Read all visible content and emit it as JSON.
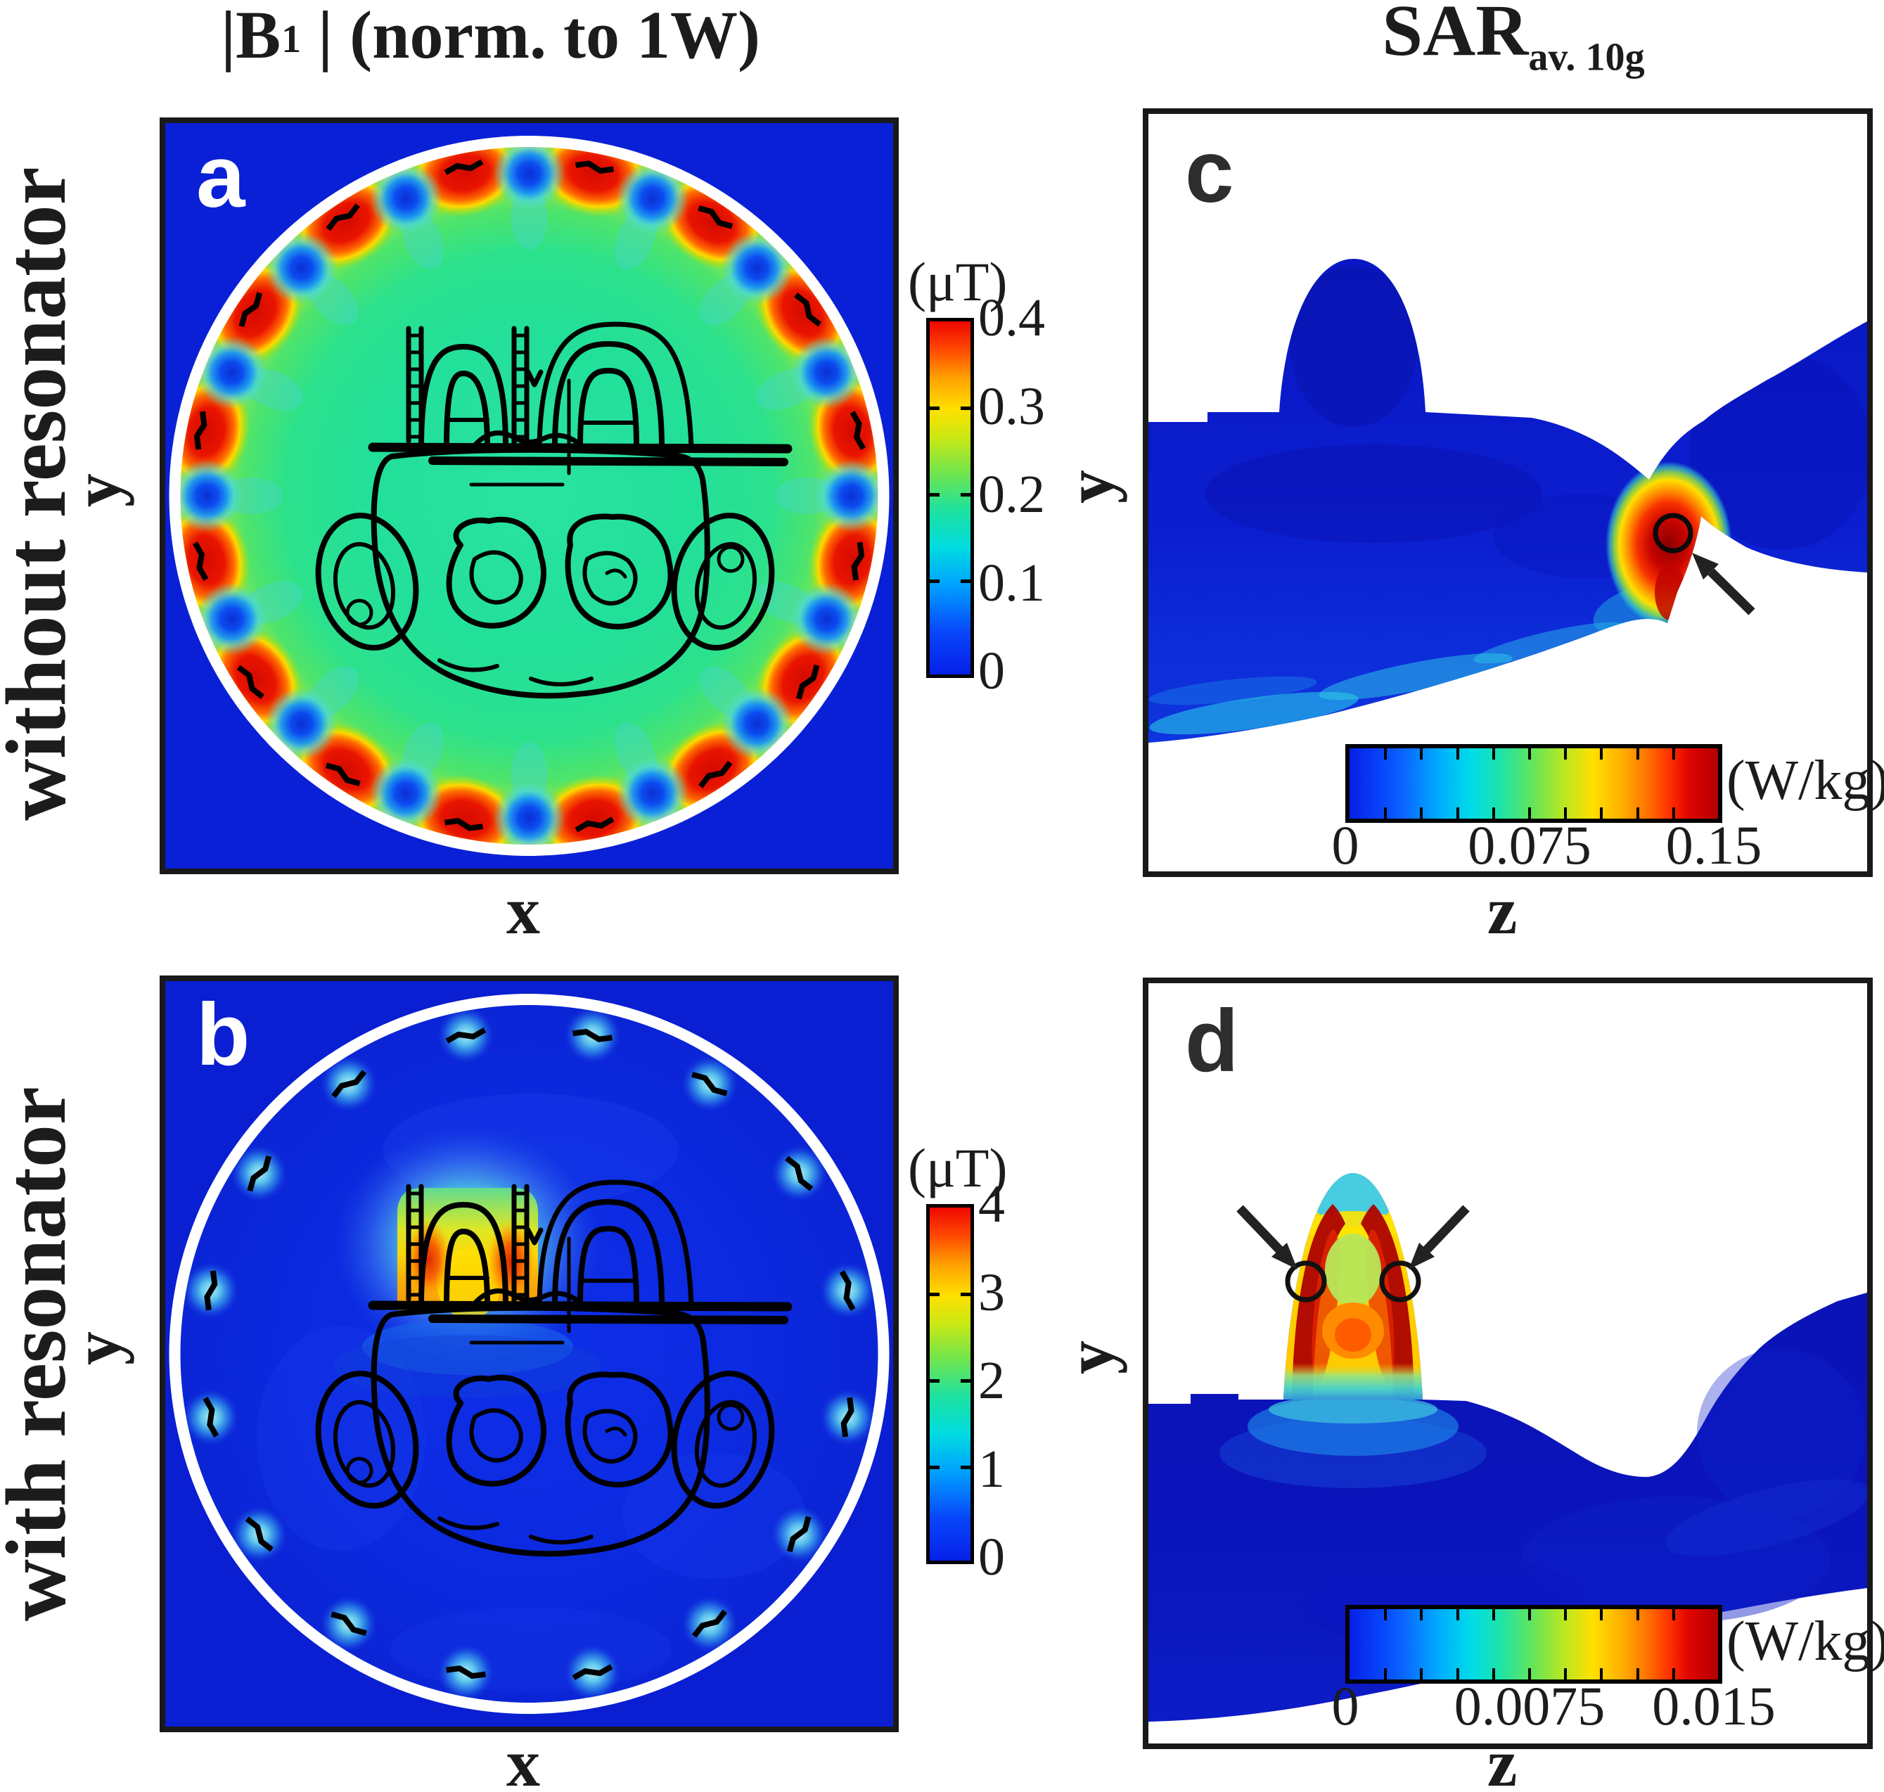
{
  "titles": {
    "left": {
      "pre": "|B",
      "sub": "1",
      "sup": "+",
      "post": "| (norm. to 1W)"
    },
    "right": {
      "main": "SAR",
      "sub": "av. 10g"
    }
  },
  "rows": [
    {
      "label": "without resonator"
    },
    {
      "label": "with resonator"
    }
  ],
  "panels": [
    {
      "letter": "a",
      "row": "without resonator",
      "xlabel": "x",
      "ylabel": "y",
      "colorbar": {
        "unit": "(μT)",
        "orientation": "vertical",
        "ticks": [
          "0.4",
          "0.3",
          "0.2",
          "0.1",
          "0"
        ],
        "minor_divisions": 4
      }
    },
    {
      "letter": "b",
      "row": "with resonator",
      "xlabel": "x",
      "ylabel": "y",
      "colorbar": {
        "unit": "(μT)",
        "orientation": "vertical",
        "ticks": [
          "4",
          "3",
          "2",
          "1",
          "0"
        ],
        "minor_divisions": 4
      }
    },
    {
      "letter": "c",
      "row": "without resonator",
      "xlabel": "z",
      "ylabel": "y",
      "colorbar": {
        "unit": "(W/kg)",
        "orientation": "horizontal",
        "ticks": [
          "0",
          "0.075",
          "0.15"
        ],
        "minor_divisions": 10
      }
    },
    {
      "letter": "d",
      "row": "with resonator",
      "xlabel": "z",
      "ylabel": "y",
      "colorbar": {
        "unit": "(W/kg)",
        "orientation": "horizontal",
        "ticks": [
          "0",
          "0.0075",
          "0.015"
        ],
        "minor_divisions": 10
      }
    }
  ],
  "chart_data": [
    {
      "panel": "a",
      "type": "heatmap",
      "quantity": "|B1+| (norm. to 1W)",
      "condition": "without resonator",
      "slice": "axial",
      "x_axis": "x",
      "y_axis": "y",
      "colormap": "jet",
      "unit": "μT",
      "range": [
        0,
        0.4
      ],
      "colorbar_ticks": [
        0.4,
        0.3,
        0.2,
        0.1,
        0
      ],
      "features": {
        "outside_coil_uT": 0,
        "coil_interior_mean_uT": 0.18,
        "rim_hotspot_count": 16,
        "rim_hotspot_peak_uT": 0.4,
        "rim_null_count": 16,
        "rim_null_uT": 0.05,
        "overlay": "black human torso cross-section contour inside white birdcage coil circle"
      }
    },
    {
      "panel": "b",
      "type": "heatmap",
      "quantity": "|B1+| (norm. to 1W)",
      "condition": "with resonator",
      "slice": "axial",
      "x_axis": "x",
      "y_axis": "y",
      "colormap": "jet",
      "unit": "μT",
      "range": [
        0,
        4
      ],
      "colorbar_ticks": [
        4,
        3,
        2,
        1,
        0
      ],
      "features": {
        "outside_coil_uT": 0,
        "coil_interior_mean_uT": 0.35,
        "resonator_hotspot_peak_uT": 4,
        "resonator_hotspot_location": "anterior chest between the two resonator rods, upper centre of coil",
        "rim_dot_count": 16,
        "rim_dot_uT": 1,
        "overlay": "black human torso cross-section contour inside white birdcage coil circle"
      }
    },
    {
      "panel": "c",
      "type": "heatmap",
      "quantity": "SAR av. 10g",
      "condition": "without resonator",
      "slice": "sagittal",
      "x_axis": "z",
      "y_axis": "y",
      "colormap": "jet",
      "unit": "W/kg",
      "range": [
        0,
        0.15
      ],
      "colorbar_ticks": [
        0,
        0.075,
        0.15
      ],
      "features": {
        "body_background_W_kg": 0.01,
        "hotspot_peak_W_kg": 0.15,
        "hotspot_marker": "black circle with black arrow",
        "hotspot_location": "right side of torso where body sections meet"
      }
    },
    {
      "panel": "d",
      "type": "heatmap",
      "quantity": "SAR av. 10g",
      "condition": "with resonator",
      "slice": "sagittal",
      "x_axis": "z",
      "y_axis": "y",
      "colormap": "jet",
      "unit": "W/kg",
      "range": [
        0,
        0.015
      ],
      "colorbar_ticks": [
        0,
        0.0075,
        0.015
      ],
      "features": {
        "body_background_W_kg": 0.001,
        "hotspot_peak_W_kg": 0.015,
        "hotspot_marker": "two black circles with two black arrows",
        "hotspot_location": "both flanks of the chin/nose dome at the resonator"
      }
    }
  ],
  "decorations": {
    "rim_a": {
      "petals": {
        "count": 16,
        "phase_deg": 11.25,
        "radius": 468
      },
      "dots": {
        "count": 16,
        "phase_deg": 0,
        "radius": 458
      },
      "dash_radius": 477
    },
    "rim_b": {
      "dots": {
        "count": 16,
        "phase_deg": 11.25,
        "radius": 462
      },
      "dash_radius": 462
    },
    "ladder_x": [
      355,
      505
    ]
  },
  "palette": {
    "jet_low": "#0620e8",
    "jet_mid": "#00dce0",
    "jet_high_bright": "#ee0600",
    "jet_high_dark": "#b40000",
    "outside_coil_blue": "#0a20d6",
    "coil_interior_green": "#22e09a",
    "coil_interior_blue": "#0c2ade",
    "ring_white": "#ffffff",
    "contour_black": "#000000",
    "panel_border": "#191919",
    "letter_light": "#ffffff",
    "letter_dark": "#2e2e2e"
  }
}
